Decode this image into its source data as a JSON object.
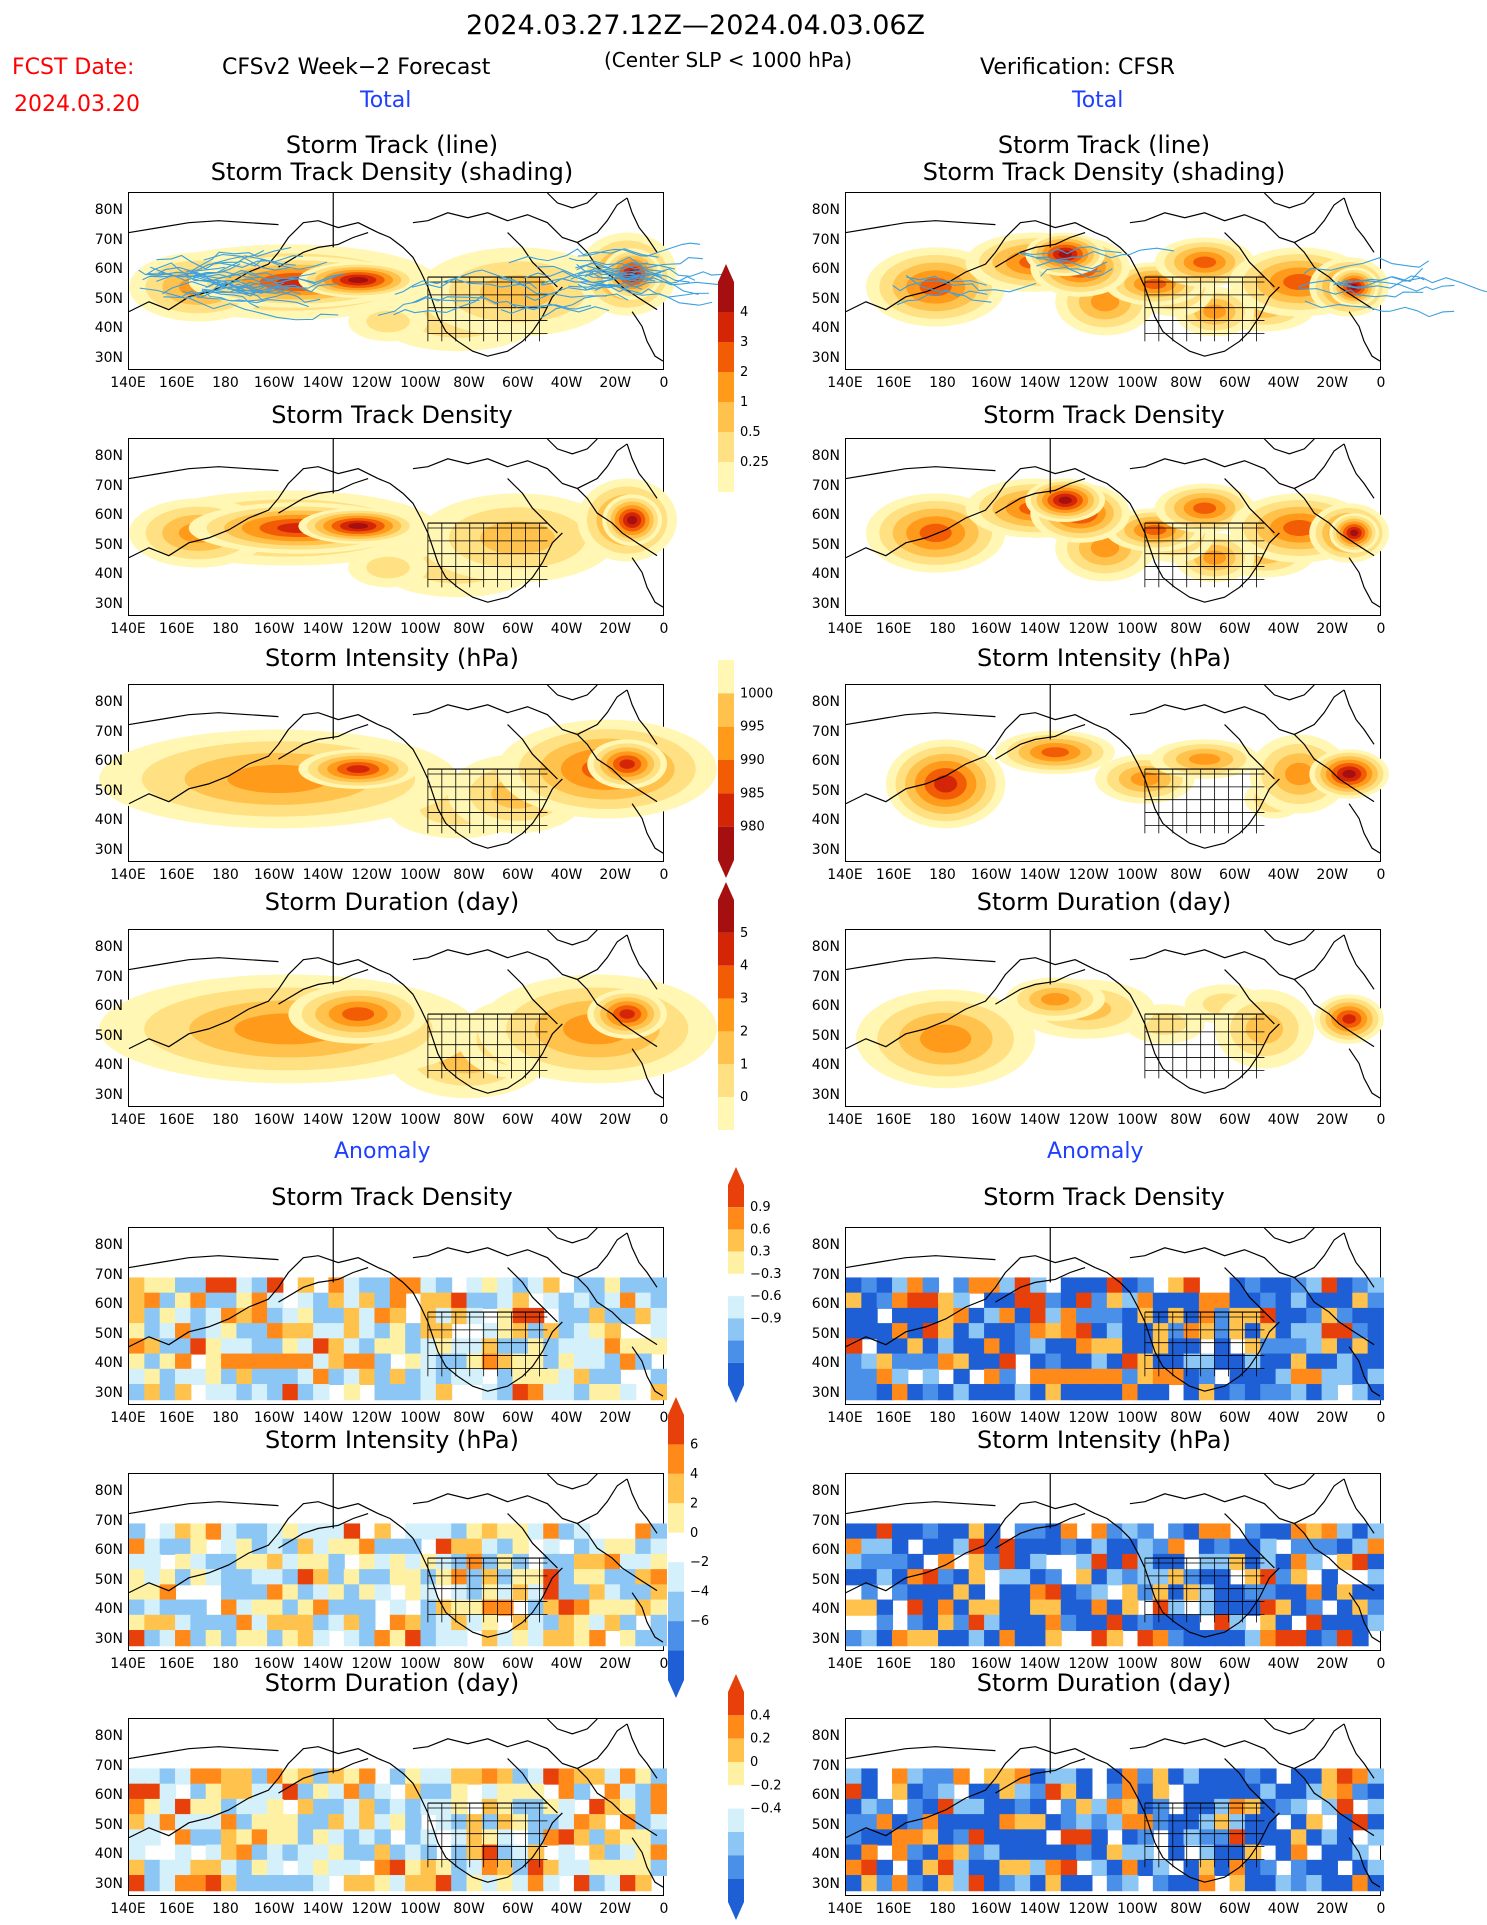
{
  "header": {
    "period": "2024.03.27.12Z—2024.04.03.06Z",
    "fcst_label": "FCST Date:",
    "fcst_date": "2024.03.20",
    "forecast_title": "CFSv2 Week−2 Forecast",
    "criterion": "(Center SLP < 1000 hPa)",
    "verification_title": "Verification: CFSR"
  },
  "sections": {
    "total": "Total",
    "anomaly": "Anomaly"
  },
  "panel_titles": {
    "track_line": "Storm Track (line)",
    "track_density_shading": "Storm Track Density (shading)",
    "track_density": "Storm Track Density",
    "intensity": "Storm Intensity (hPa)",
    "duration": "Storm Duration (day)"
  },
  "axes": {
    "lat_ticks": [
      "80N",
      "70N",
      "60N",
      "50N",
      "40N",
      "30N"
    ],
    "lon_ticks": [
      "140E",
      "160E",
      "180",
      "160W",
      "140W",
      "120W",
      "100W",
      "80W",
      "60W",
      "40W",
      "20W",
      "0"
    ]
  },
  "colorbars": {
    "density": [
      "4",
      "3",
      "2",
      "1",
      "0.5",
      "0.25"
    ],
    "intensity": [
      "1000",
      "995",
      "990",
      "985",
      "980"
    ],
    "duration": [
      "5",
      "4",
      "3",
      "2",
      "1",
      "0"
    ],
    "density_anom": [
      "0.9",
      "0.6",
      "0.3",
      "−0.3",
      "−0.6",
      "−0.9"
    ],
    "intensity_anom": [
      "6",
      "4",
      "2",
      "0",
      "−2",
      "−4",
      "−6"
    ],
    "duration_anom": [
      "0.4",
      "0.2",
      "0",
      "−0.2",
      "−0.4"
    ]
  },
  "colors": {
    "warm": [
      "#fff7b3",
      "#ffe082",
      "#ffc34d",
      "#ff9a1a",
      "#f25c05",
      "#d42606",
      "#a50f0f"
    ],
    "diverging": [
      "#1e5fd6",
      "#4a8fe8",
      "#8cc6f5",
      "#d3f0fb",
      "#ffffff",
      "#fff1a3",
      "#ffc34d",
      "#ff8a1a",
      "#e8400a"
    ],
    "track_line": "#3aa0e0",
    "map_lines": "#000000",
    "anomaly_label": "#1f3fff",
    "fcst_label": "#ff0000"
  }
}
